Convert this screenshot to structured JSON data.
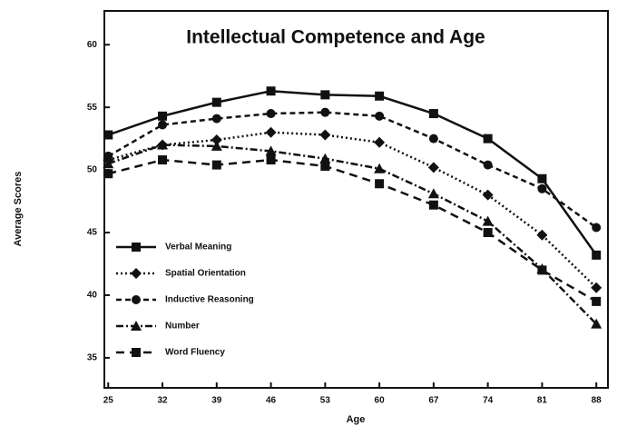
{
  "chart_data": {
    "type": "line",
    "title": "Intellectual Competence and Age",
    "x_label": "Age",
    "y_label": "Average Scores",
    "x": [
      25,
      32,
      39,
      46,
      53,
      60,
      67,
      74,
      81,
      88
    ],
    "xlim": [
      24.5,
      89.5
    ],
    "xticks": [
      25,
      32,
      39,
      46,
      53,
      60,
      67,
      74,
      81,
      88
    ],
    "ylim": [
      32.6,
      62.7
    ],
    "yticks": [
      35,
      40,
      45,
      50,
      55,
      60
    ],
    "legend": "lower left",
    "series": [
      {
        "name": "Verbal Meaning",
        "color": "#111111",
        "marker": "square",
        "dash": "solid",
        "values": [
          52.8,
          54.3,
          55.4,
          56.3,
          56.0,
          55.9,
          54.5,
          52.5,
          49.3,
          43.2
        ]
      },
      {
        "name": "Spatial Orientation",
        "color": "#111111",
        "marker": "diamond",
        "dash": "dotted",
        "values": [
          50.8,
          52.0,
          52.4,
          53.0,
          52.8,
          52.2,
          50.2,
          48.0,
          44.8,
          40.6
        ]
      },
      {
        "name": "Inductive Reasoning",
        "color": "#111111",
        "marker": "circle",
        "dash": "dashed",
        "values": [
          51.1,
          53.6,
          54.1,
          54.5,
          54.6,
          54.3,
          52.5,
          50.4,
          48.5,
          45.4
        ]
      },
      {
        "name": "Number",
        "color": "#111111",
        "marker": "triangle",
        "dash": "dash-dot",
        "values": [
          50.5,
          52.0,
          51.9,
          51.5,
          50.9,
          50.1,
          48.1,
          45.9,
          42.1,
          37.7
        ]
      },
      {
        "name": "Word Fluency",
        "color": "#111111",
        "marker": "square",
        "dash": "long-dash",
        "values": [
          49.7,
          50.8,
          50.4,
          50.8,
          50.3,
          48.9,
          47.2,
          45.0,
          42.0,
          39.5
        ]
      }
    ]
  }
}
